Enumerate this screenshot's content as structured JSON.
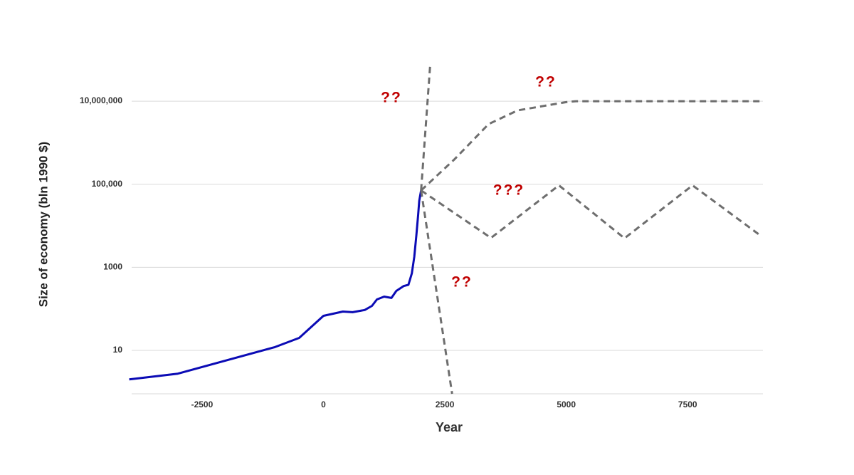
{
  "chart_data": {
    "type": "line",
    "xlabel": "Year",
    "ylabel": "Size of economy (bln 1990 $)",
    "xlim": [
      -3950,
      9050
    ],
    "xticks": [
      -2500,
      0,
      2500,
      5000,
      7500
    ],
    "ylim": [
      0.9,
      80000000
    ],
    "yscale": "log",
    "yticks": [
      10,
      1000,
      {
        "value": 100000,
        "label": "100,000"
      },
      {
        "value": 10000000,
        "label": "10,000,000"
      }
    ],
    "grid": true,
    "series": [
      {
        "color": "#0b0bb5",
        "dashed": false,
        "x": [
          -4000,
          -3000,
          -1000,
          -500,
          0,
          400,
          600,
          850,
          1000,
          1100,
          1250,
          1400,
          1500,
          1650,
          1750,
          1820,
          1870,
          1913,
          1950,
          1973,
          2010
        ],
        "values": [
          2,
          2.75,
          12,
          20,
          68,
          86,
          83,
          94,
          118,
          168,
          197,
          183,
          270,
          354,
          380,
          716,
          1780,
          5760,
          18600,
          40000,
          71000
        ]
      },
      {
        "color": "#6e6e6e",
        "dashed": true,
        "x": [
          2010,
          2200
        ],
        "values": [
          71000,
          80000000
        ]
      },
      {
        "color": "#6e6e6e",
        "dashed": true,
        "x": [
          2010,
          2650
        ],
        "values": [
          71000,
          0.9
        ]
      },
      {
        "color": "#6e6e6e",
        "dashed": true,
        "x": [
          2010,
          2700,
          3400,
          4000,
          5000,
          5200,
          9000
        ],
        "values": [
          71000,
          400000,
          2800000,
          6000000,
          9500000,
          10000000,
          10000000
        ]
      },
      {
        "color": "#6e6e6e",
        "dashed": true,
        "x": [
          2010,
          3450,
          4850,
          6200,
          7600,
          9000
        ],
        "values": [
          71000,
          5100,
          94000,
          5000,
          94000,
          5800
        ]
      }
    ],
    "annotations": [
      "??",
      "??",
      "???",
      "??"
    ],
    "annotation_color": "#c00000"
  }
}
